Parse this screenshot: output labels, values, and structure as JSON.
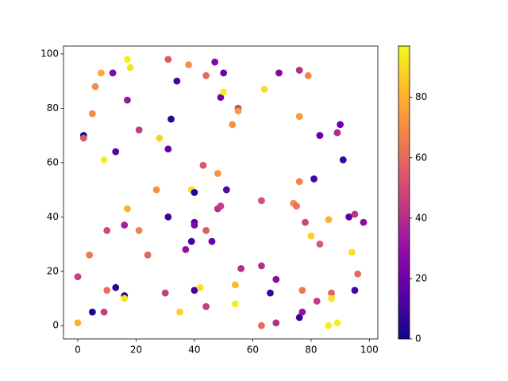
{
  "chart_data": {
    "type": "scatter",
    "colormap": "plasma",
    "x": [
      0,
      0,
      2,
      2,
      5,
      4,
      5,
      6,
      8,
      9,
      9,
      10,
      10,
      12,
      13,
      13,
      16,
      16,
      16,
      17,
      17,
      17,
      18,
      21,
      21,
      24,
      27,
      28,
      30,
      31,
      31,
      31,
      32,
      34,
      35,
      37,
      38,
      39,
      39,
      40,
      40,
      40,
      40,
      42,
      43,
      44,
      44,
      44,
      46,
      47,
      48,
      48,
      49,
      49,
      50,
      50,
      51,
      53,
      54,
      54,
      55,
      55,
      56,
      63,
      63,
      63,
      64,
      66,
      68,
      68,
      69,
      74,
      75,
      76,
      76,
      76,
      76,
      77,
      77,
      78,
      79,
      80,
      81,
      82,
      83,
      83,
      86,
      86,
      87,
      87,
      89,
      89,
      90,
      91,
      93,
      94,
      95,
      95,
      96,
      98
    ],
    "values": [
      1,
      18,
      70,
      69,
      5,
      26,
      78,
      88,
      93,
      5,
      61,
      13,
      35,
      93,
      14,
      64,
      37,
      11,
      10,
      98,
      83,
      43,
      95,
      35,
      72,
      26,
      50,
      69,
      12,
      98,
      65,
      40,
      76,
      90,
      5,
      28,
      96,
      31,
      50,
      49,
      38,
      37,
      13,
      14,
      59,
      92,
      35,
      7,
      31,
      97,
      56,
      43,
      44,
      84,
      93,
      86,
      50,
      74,
      15,
      8,
      80,
      79,
      21,
      46,
      22,
      0,
      87,
      12,
      17,
      1,
      93,
      45,
      44,
      94,
      77,
      53,
      3,
      13,
      5,
      38,
      92,
      33,
      54,
      9,
      70,
      30,
      39,
      0,
      12,
      10,
      71,
      1,
      74,
      61,
      40,
      27,
      41,
      13,
      19,
      38
    ],
    "color_values": [
      80,
      45,
      2,
      55,
      3,
      65,
      70,
      70,
      78,
      45,
      95,
      62,
      50,
      25,
      5,
      15,
      35,
      5,
      92,
      95,
      32,
      80,
      92,
      68,
      45,
      58,
      72,
      88,
      45,
      55,
      20,
      8,
      5,
      12,
      88,
      30,
      72,
      10,
      92,
      5,
      15,
      25,
      10,
      92,
      55,
      60,
      55,
      45,
      20,
      25,
      72,
      40,
      45,
      22,
      20,
      95,
      15,
      72,
      82,
      95,
      45,
      75,
      40,
      52,
      40,
      60,
      90,
      8,
      28,
      40,
      25,
      70,
      62,
      40,
      75,
      68,
      8,
      65,
      30,
      48,
      68,
      88,
      10,
      45,
      18,
      55,
      80,
      95,
      58,
      92,
      38,
      95,
      20,
      8,
      15,
      92,
      42,
      10,
      60,
      28
    ],
    "xlim": [
      -4.9,
      102.9
    ],
    "ylim": [
      -4.9,
      102.9
    ],
    "xticks": [
      0,
      20,
      40,
      60,
      80,
      100
    ],
    "yticks": [
      0,
      20,
      40,
      60,
      80,
      100
    ],
    "clim": [
      0,
      97
    ],
    "cticks": [
      0,
      20,
      40,
      60,
      80
    ]
  }
}
